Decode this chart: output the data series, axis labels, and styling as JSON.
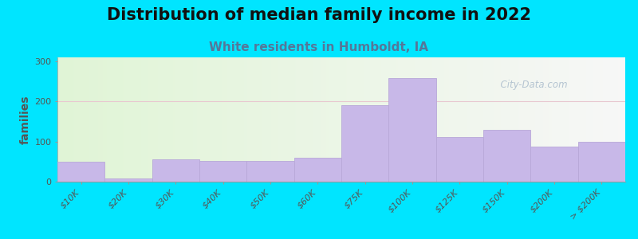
{
  "title": "Distribution of median family income in 2022",
  "subtitle": "White residents in Humboldt, IA",
  "categories": [
    "$10K",
    "$20K",
    "$30K",
    "$40K",
    "$50K",
    "$60K",
    "$75K",
    "$100K",
    "$125K",
    "$150K",
    "$200K",
    "> $200K"
  ],
  "values": [
    50,
    8,
    55,
    52,
    52,
    60,
    190,
    258,
    112,
    130,
    88,
    100
  ],
  "bar_color": "#c8b8e8",
  "bar_edgecolor": "#b8a8d8",
  "background_outer": "#00e5ff",
  "title_fontsize": 15,
  "subtitle_fontsize": 11,
  "ylabel": "families",
  "ylabel_fontsize": 10,
  "tick_fontsize": 8,
  "yticks": [
    0,
    100,
    200,
    300
  ],
  "ylim": [
    0,
    310
  ],
  "watermark_text": "  City-Data.com",
  "watermark_color": "#aabccc",
  "grid_color": "#e8c8d0",
  "title_color": "#111111",
  "subtitle_color": "#557799"
}
